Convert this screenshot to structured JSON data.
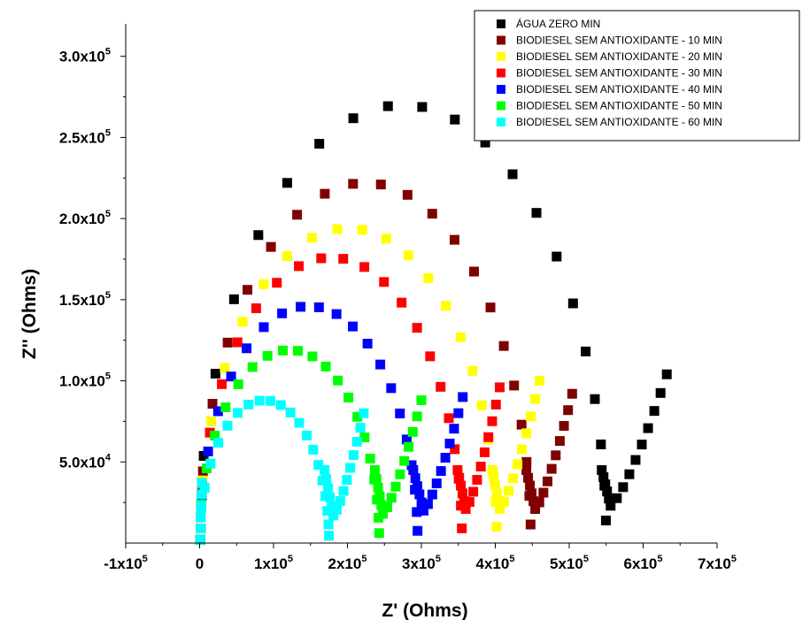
{
  "chart_data": {
    "type": "scatter",
    "title": "",
    "xlabel": "Z' (Ohms)",
    "ylabel": "Z'' (Ohms)",
    "xlim": [
      -100000,
      700000
    ],
    "ylim": [
      0,
      320000
    ],
    "grid": false,
    "legend_position": "top-right",
    "x_ticks": [
      {
        "value": -100000,
        "label": "-1x10",
        "exp": "5"
      },
      {
        "value": 0,
        "label": "0",
        "exp": ""
      },
      {
        "value": 100000,
        "label": "1x10",
        "exp": "5"
      },
      {
        "value": 200000,
        "label": "2x10",
        "exp": "5"
      },
      {
        "value": 300000,
        "label": "3x10",
        "exp": "5"
      },
      {
        "value": 400000,
        "label": "4x10",
        "exp": "5"
      },
      {
        "value": 500000,
        "label": "5x10",
        "exp": "5"
      },
      {
        "value": 600000,
        "label": "6x10",
        "exp": "5"
      },
      {
        "value": 700000,
        "label": "7x10",
        "exp": "5"
      }
    ],
    "y_ticks": [
      {
        "value": 50000,
        "label": "5.0x10",
        "exp": "4"
      },
      {
        "value": 100000,
        "label": "1.0x10",
        "exp": "5"
      },
      {
        "value": 150000,
        "label": "1.5x10",
        "exp": "5"
      },
      {
        "value": 200000,
        "label": "2.0x10",
        "exp": "5"
      },
      {
        "value": 250000,
        "label": "2.5x10",
        "exp": "5"
      },
      {
        "value": 300000,
        "label": "3.0x10",
        "exp": "5"
      }
    ],
    "series": [
      {
        "name": "ÁGUA ZERO MIN",
        "color": "#000000",
        "arc_end": 550000,
        "arc_peak": 270000,
        "tail_min_x": 556000,
        "tail_min_y": 23000,
        "tail_end_x": 632000,
        "tail_end_y": 104000
      },
      {
        "name": "BIODIESEL SEM ANTIOXIDANTE - 10 MIN",
        "color": "#800000",
        "arc_end": 448000,
        "arc_peak": 222000,
        "tail_min_x": 454000,
        "tail_min_y": 21000,
        "tail_end_x": 504000,
        "tail_end_y": 92000
      },
      {
        "name": "BIODIESEL SEM ANTIOXIDANTE - 20 MIN",
        "color": "#ffff00",
        "arc_end": 402000,
        "arc_peak": 194000,
        "tail_min_x": 406000,
        "tail_min_y": 21000,
        "tail_end_x": 460000,
        "tail_end_y": 100000
      },
      {
        "name": "BIODIESEL SEM ANTIOXIDANTE - 30 MIN",
        "color": "#ff0000",
        "arc_end": 355000,
        "arc_peak": 176000,
        "tail_min_x": 360000,
        "tail_min_y": 21000,
        "tail_end_x": 406000,
        "tail_end_y": 96000
      },
      {
        "name": "BIODIESEL SEM ANTIOXIDANTE - 40 MIN",
        "color": "#0000ff",
        "arc_end": 295000,
        "arc_peak": 146000,
        "tail_min_x": 303000,
        "tail_min_y": 20000,
        "tail_end_x": 356000,
        "tail_end_y": 90000
      },
      {
        "name": "BIODIESEL SEM ANTIOXIDANTE - 50 MIN",
        "color": "#00ff00",
        "arc_end": 243000,
        "arc_peak": 119000,
        "tail_min_x": 248000,
        "tail_min_y": 18000,
        "tail_end_x": 300000,
        "tail_end_y": 88000
      },
      {
        "name": "BIODIESEL SEM ANTIOXIDANTE - 60 MIN",
        "color": "#00ffff",
        "arc_end": 175000,
        "arc_peak": 88000,
        "tail_min_x": 181000,
        "tail_min_y": 17000,
        "tail_end_x": 222000,
        "tail_end_y": 80000
      }
    ]
  }
}
